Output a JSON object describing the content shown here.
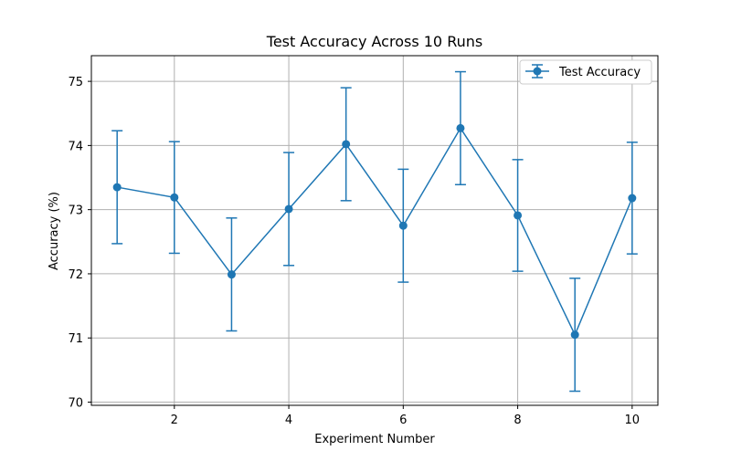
{
  "chart_data": {
    "type": "line",
    "title": "Test Accuracy Across 10 Runs",
    "xlabel": "Experiment Number",
    "ylabel": "Accuracy (%)",
    "xlim": [
      0.55,
      10.45
    ],
    "ylim": [
      69.95,
      75.4
    ],
    "xticks": [
      2,
      4,
      6,
      8,
      10
    ],
    "yticks": [
      70,
      71,
      72,
      73,
      74,
      75
    ],
    "grid": true,
    "legend_position": "upper right",
    "series": [
      {
        "name": "Test Accuracy",
        "color": "#1f77b4",
        "marker": "circle",
        "x": [
          1,
          2,
          3,
          4,
          5,
          6,
          7,
          8,
          9,
          10
        ],
        "y": [
          73.35,
          73.19,
          71.99,
          73.01,
          74.02,
          72.75,
          74.27,
          72.91,
          71.05,
          73.18
        ],
        "yerr": [
          0.88,
          0.87,
          0.88,
          0.88,
          0.88,
          0.88,
          0.88,
          0.87,
          0.88,
          0.87
        ]
      }
    ]
  }
}
